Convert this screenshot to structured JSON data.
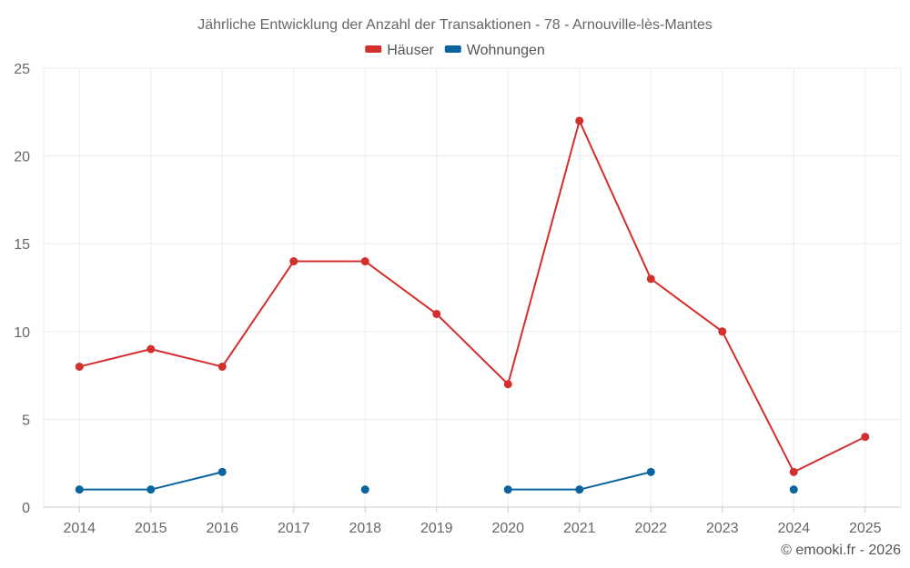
{
  "chart_data": {
    "type": "line",
    "title": "Jährliche Entwicklung der Anzahl der Transaktionen - 78 - Arnouville-lès-Mantes",
    "categories": [
      "2014",
      "2015",
      "2016",
      "2017",
      "2018",
      "2019",
      "2020",
      "2021",
      "2022",
      "2023",
      "2024",
      "2025"
    ],
    "series": [
      {
        "name": "Häuser",
        "color": "#d32f2f",
        "values": [
          8,
          9,
          8,
          14,
          14,
          11,
          7,
          22,
          13,
          10,
          2,
          4
        ]
      },
      {
        "name": "Wohnungen",
        "color": "#0a64a0",
        "values": [
          1,
          1,
          2,
          null,
          1,
          null,
          1,
          1,
          2,
          null,
          1,
          null
        ]
      }
    ],
    "ylim": [
      0,
      25
    ],
    "yticks": [
      0,
      5,
      10,
      15,
      20,
      25
    ],
    "xlabel": "",
    "ylabel": "",
    "grid": true,
    "legend_position": "top-center"
  },
  "credit": "© emooki.fr - 2026"
}
